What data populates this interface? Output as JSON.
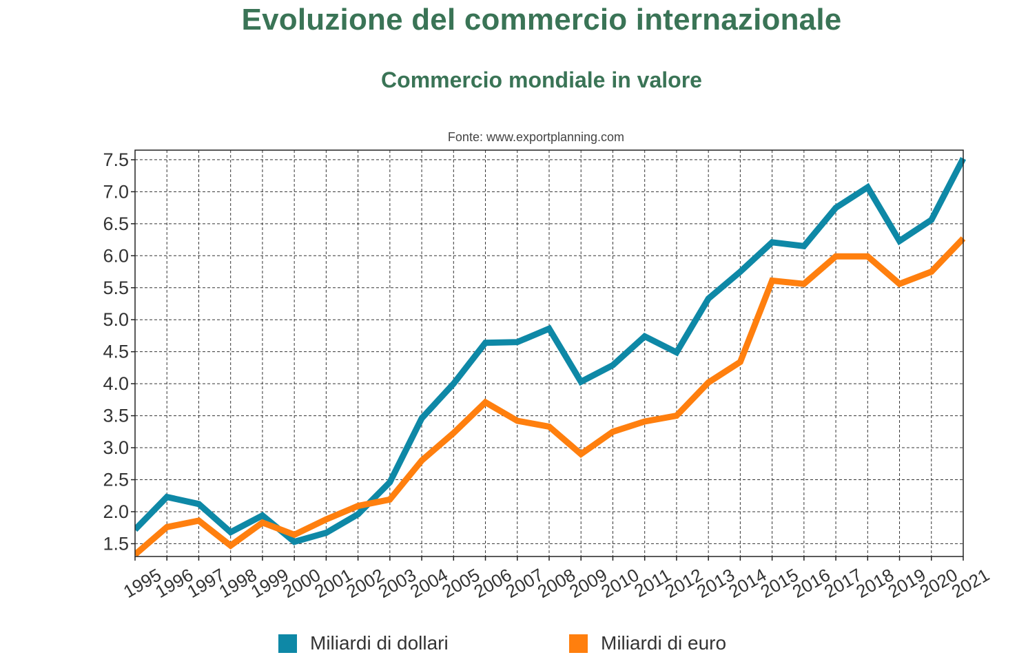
{
  "title": "Evoluzione del commercio internazionale",
  "subtitle": "Commercio mondiale in valore",
  "source": "Fonte: www.exportplanning.com",
  "colors": {
    "title": "#3a7456",
    "dollari": "#0e88a6",
    "euro": "#ff7f0e"
  },
  "legend": [
    {
      "label": "Miliardi di dollari",
      "color": "#0e88a6"
    },
    {
      "label": "Miliardi di euro",
      "color": "#ff7f0e"
    }
  ],
  "chart_data": {
    "type": "line",
    "title": "Evoluzione del commercio internazionale",
    "subtitle": "Commercio mondiale in valore",
    "x": [
      "1995",
      "1996",
      "1997",
      "1998",
      "1999",
      "2000",
      "2001",
      "2002",
      "2003",
      "2004",
      "2005",
      "2006",
      "2007",
      "2008",
      "2009",
      "2010",
      "2011",
      "2012",
      "2013",
      "2014",
      "2015",
      "2016",
      "2017",
      "2018",
      "2019",
      "2020",
      "2021"
    ],
    "series": [
      {
        "name": "Miliardi di dollari",
        "color": "#0e88a6",
        "values": [
          1.72,
          2.23,
          2.12,
          1.68,
          1.94,
          1.53,
          1.67,
          1.96,
          2.46,
          3.46,
          4.0,
          4.64,
          4.65,
          4.86,
          4.03,
          4.29,
          4.74,
          4.49,
          5.33,
          5.75,
          6.21,
          6.15,
          6.75,
          7.07,
          6.23,
          6.56,
          7.52
        ]
      },
      {
        "name": "Miliardi di euro",
        "color": "#ff7f0e",
        "values": [
          1.33,
          1.76,
          1.86,
          1.47,
          1.83,
          1.64,
          1.88,
          2.09,
          2.19,
          2.8,
          3.23,
          3.71,
          3.42,
          3.33,
          2.9,
          3.25,
          3.41,
          3.5,
          4.02,
          4.34,
          5.61,
          5.56,
          5.99,
          5.99,
          5.56,
          5.75,
          6.27
        ]
      }
    ],
    "y_ticks": [
      "1.5",
      "2.0",
      "2.5",
      "3.0",
      "3.5",
      "4.0",
      "4.5",
      "5.0",
      "5.5",
      "6.0",
      "6.5",
      "7.0",
      "7.5"
    ],
    "ylim": [
      1.3,
      7.65
    ],
    "grid": true,
    "legend_position": "bottom"
  }
}
